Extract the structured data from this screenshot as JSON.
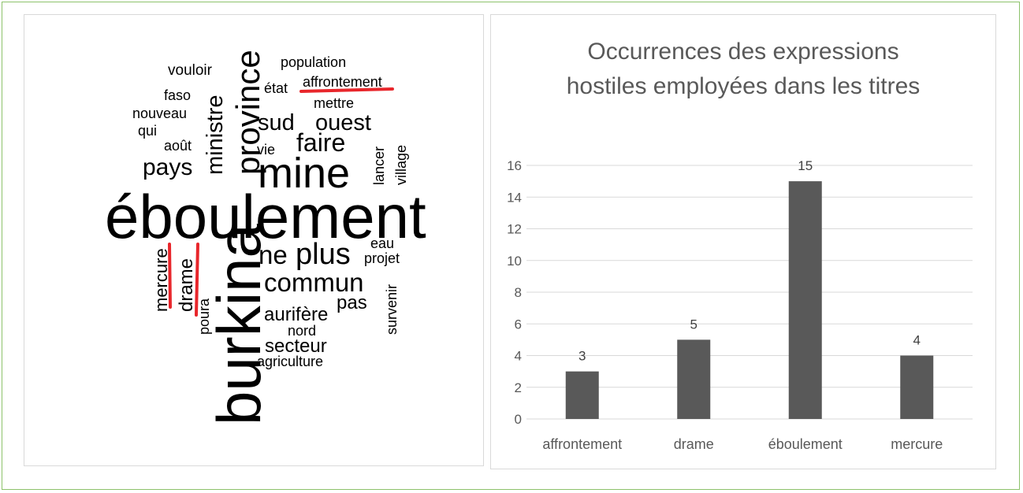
{
  "word_cloud": {
    "words": [
      "vouloir",
      "population",
      "état",
      "affrontement",
      "faso",
      "nouveau",
      "mettre",
      "qui",
      "août",
      "sud",
      "ouest",
      "faire",
      "vie",
      "pays",
      "mine",
      "lancer",
      "village",
      "ministre",
      "province",
      "éboulement",
      "eau",
      "projet",
      "ne",
      "plus",
      "commun",
      "pas",
      "aurifère",
      "survenir",
      "nord",
      "secteur",
      "agriculture",
      "burkina",
      "mercure",
      "drame",
      "poura"
    ]
  },
  "chart_data": {
    "type": "bar",
    "title": "Occurrences des expressions hostiles employées dans les titres",
    "categories": [
      "affrontement",
      "drame",
      "éboulement",
      "mercure"
    ],
    "values": [
      3,
      5,
      15,
      4
    ],
    "color": "#595959",
    "ylim": [
      0,
      16
    ],
    "yticks": [
      0,
      2,
      4,
      6,
      8,
      10,
      12,
      14,
      16
    ],
    "grid": true
  }
}
